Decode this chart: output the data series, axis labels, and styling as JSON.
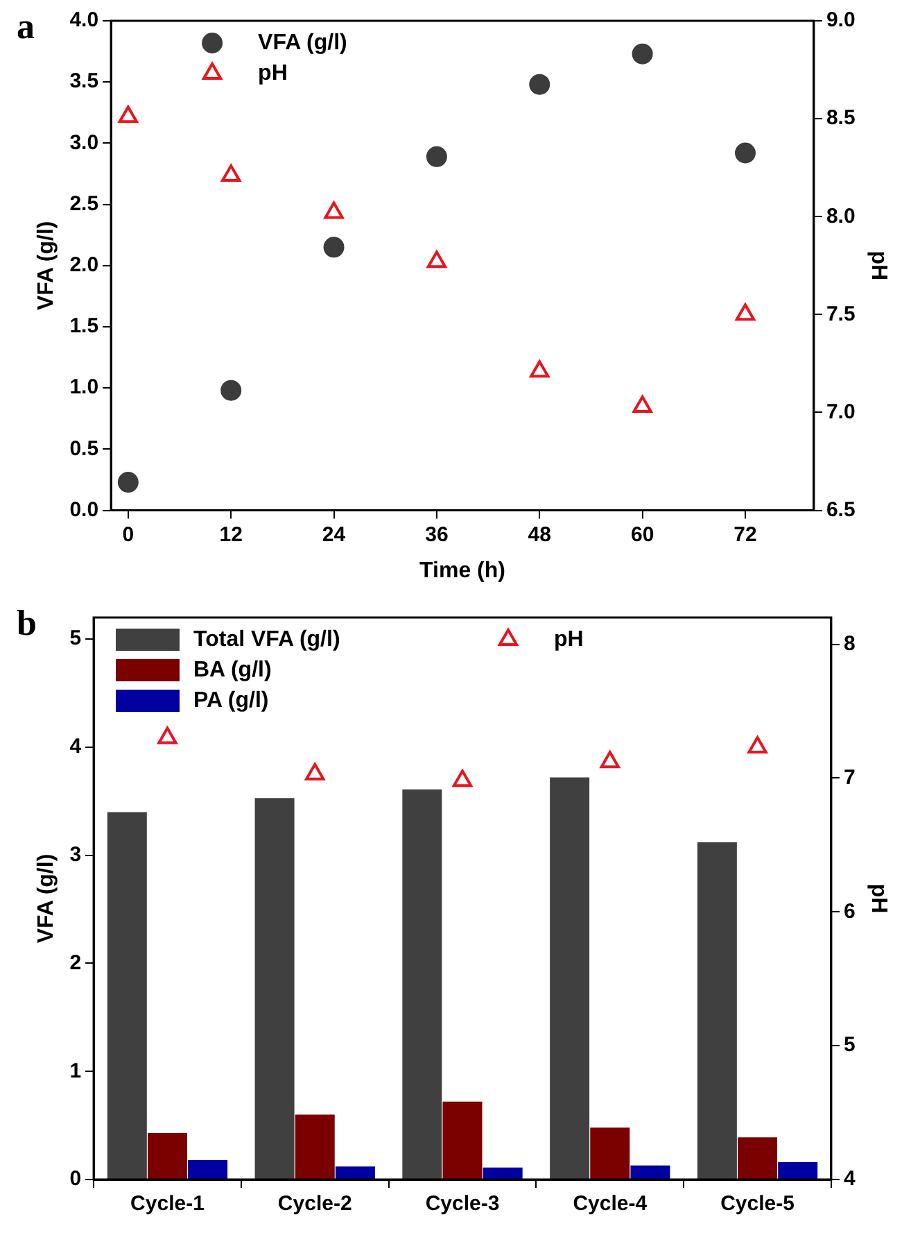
{
  "chart_data": [
    {
      "type": "scatter",
      "title": "a",
      "xlabel": "Time (h)",
      "ylabel": "VFA (g/l)",
      "y2label": "pH",
      "legend": "top left",
      "grid": false,
      "xlim": [
        -2,
        80
      ],
      "xticks": [
        0,
        12,
        24,
        36,
        48,
        60,
        72
      ],
      "ylim": [
        0,
        4
      ],
      "yticks": [
        {
          "value": 0,
          "label": "0.0"
        },
        {
          "value": 0.5,
          "label": "0.5"
        },
        {
          "value": 1,
          "label": "1.0"
        },
        {
          "value": 1.5,
          "label": "1.5"
        },
        {
          "value": 2,
          "label": "2.0"
        },
        {
          "value": 2.5,
          "label": "2.5"
        },
        {
          "value": 3,
          "label": "3.0"
        },
        {
          "value": 3.5,
          "label": "3.5"
        },
        {
          "value": 4,
          "label": "4.0"
        }
      ],
      "y2lim": [
        6.5,
        9
      ],
      "y2ticks": [
        {
          "value": 6.5,
          "label": "6.5"
        },
        {
          "value": 7,
          "label": "7.0"
        },
        {
          "value": 7.5,
          "label": "7.5"
        },
        {
          "value": 8,
          "label": "8.0"
        },
        {
          "value": 8.5,
          "label": "8.5"
        },
        {
          "value": 9,
          "label": "9.0"
        }
      ],
      "x": [
        0,
        12,
        24,
        36,
        48,
        60,
        72
      ],
      "series": [
        {
          "name": "VFA (g/l)",
          "color": "#3c3c3c",
          "marker": "circle",
          "values": [
            0.23,
            0.98,
            2.15,
            2.89,
            3.48,
            3.73,
            2.92
          ]
        },
        {
          "name": "pH",
          "color": "#e8141e",
          "marker": "triangle",
          "axis": "y2",
          "values": [
            8.51,
            8.21,
            8.02,
            7.77,
            7.21,
            7.03,
            7.5
          ]
        }
      ]
    },
    {
      "type": "bar",
      "title": "b",
      "ylabel": "VFA (g/l)",
      "y2label": "pH",
      "legend": "top",
      "grid": false,
      "categories": [
        "Cycle-1",
        "Cycle-2",
        "Cycle-3",
        "Cycle-4",
        "Cycle-5"
      ],
      "ylim": [
        0,
        5.2
      ],
      "yticks": [
        0,
        1,
        2,
        3,
        4,
        5
      ],
      "y2lim": [
        4,
        8.2
      ],
      "y2ticks": [
        4,
        5,
        6,
        7,
        8
      ],
      "series": [
        {
          "name": "Total VFA (g/l)",
          "color": "#404040",
          "values": [
            3.4,
            3.53,
            3.61,
            3.72,
            3.12
          ]
        },
        {
          "name": "BA (g/l)",
          "color": "#7b0000",
          "values": [
            0.43,
            0.6,
            0.72,
            0.48,
            0.39
          ]
        },
        {
          "name": "PA (g/l)",
          "color": "#0000a0",
          "values": [
            0.18,
            0.12,
            0.11,
            0.13,
            0.16
          ]
        },
        {
          "name": "pH",
          "type": "scatter",
          "color": "#e8141e",
          "marker": "triangle",
          "axis": "y2",
          "x": [
            "Cycle-1",
            "Cycle-2",
            "Cycle-3",
            "Cycle-4",
            "Cycle-5"
          ],
          "values": [
            7.3,
            7.03,
            6.98,
            7.12,
            7.23
          ]
        }
      ]
    }
  ]
}
